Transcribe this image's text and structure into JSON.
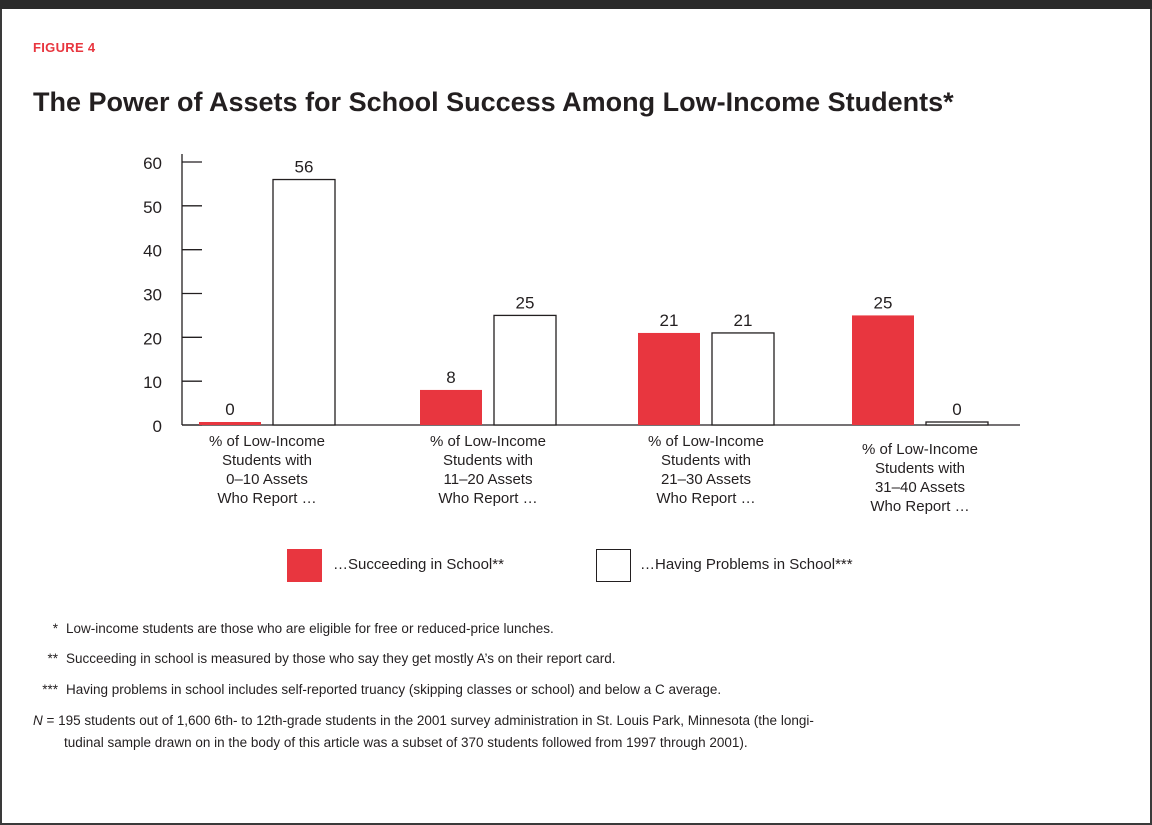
{
  "figure_label": "FIGURE 4",
  "title": "The Power of Assets for School Success Among Low-Income Students*",
  "chart_data": {
    "type": "bar",
    "categories": [
      [
        "% of Low-Income",
        "Students with",
        "0–10 Assets",
        "Who Report …"
      ],
      [
        "% of Low-Income",
        "Students with",
        "11–20 Assets",
        "Who Report …"
      ],
      [
        "% of Low-Income",
        "Students with",
        "21–30 Assets",
        "Who Report …"
      ],
      [
        "% of Low-Income",
        "Students with",
        "31–40 Assets",
        "Who Report …"
      ]
    ],
    "series": [
      {
        "name": "…Succeeding in School**",
        "values": [
          0,
          8,
          21,
          25
        ],
        "color": "#e8363f"
      },
      {
        "name": "…Having Problems in School***",
        "values": [
          56,
          25,
          21,
          0
        ],
        "color": "#ffffff"
      }
    ],
    "ylim": [
      0,
      60
    ],
    "yticks": [
      0,
      10,
      20,
      30,
      40,
      50,
      60
    ],
    "xlabel": "",
    "ylabel": "",
    "grid": false,
    "legend_position": "bottom"
  },
  "legend": {
    "succeeding": "…Succeeding in School**",
    "problems": "…Having Problems in School***"
  },
  "notes": {
    "n1_marker": "*",
    "n1_text": "Low-income students are those who are eligible for free or reduced-price lunches.",
    "n2_marker": "**",
    "n2_text": "Succeeding in school is measured by those who say they get mostly A’s on their report card.",
    "n3_marker": "***",
    "n3_text": "Having problems in school includes self-reported truancy (skipping classes or school) and below a C average.",
    "n4_italic": "N",
    "n4_line1": " = 195 students out of 1,600 6th- to 12th-grade students in the 2001 survey administration in St. Louis Park, Minnesota (the longi-",
    "n4_line2": "tudinal sample drawn on in the body of this article was a subset of 370 students followed from 1997 through 2001)."
  }
}
